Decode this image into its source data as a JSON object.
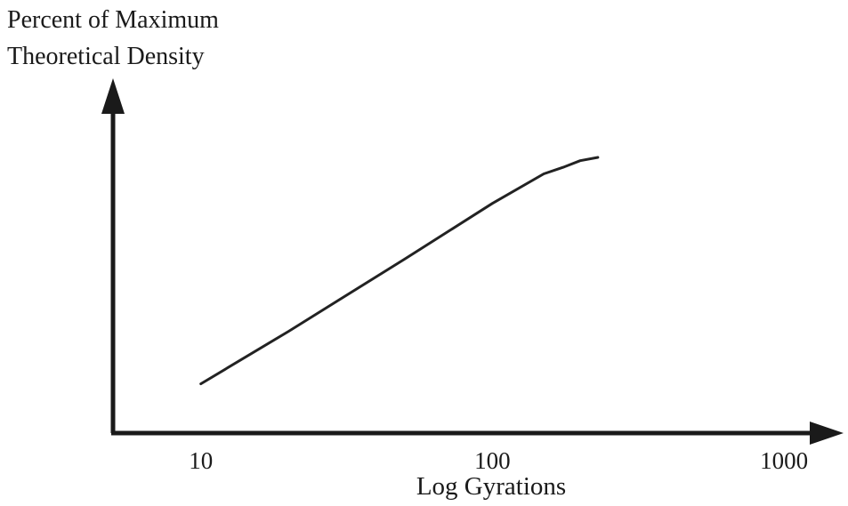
{
  "chart_data": {
    "type": "line",
    "xlabel": "Log Gyrations",
    "ylabel_lines": [
      "Percent of Maximum",
      "Theoretical Density"
    ],
    "x_scale": "log",
    "x_ticks": [
      10,
      100,
      1000
    ],
    "x_tick_labels": [
      "10",
      "100",
      "1000"
    ],
    "xlim": [
      5,
      1600
    ],
    "ylim": [
      0,
      100
    ],
    "grid": false,
    "series": [
      {
        "x": [
          10,
          20,
          50,
          100,
          150,
          175,
          200,
          230
        ],
        "y": [
          15,
          31,
          53,
          70,
          79,
          81,
          83,
          84
        ]
      }
    ]
  }
}
